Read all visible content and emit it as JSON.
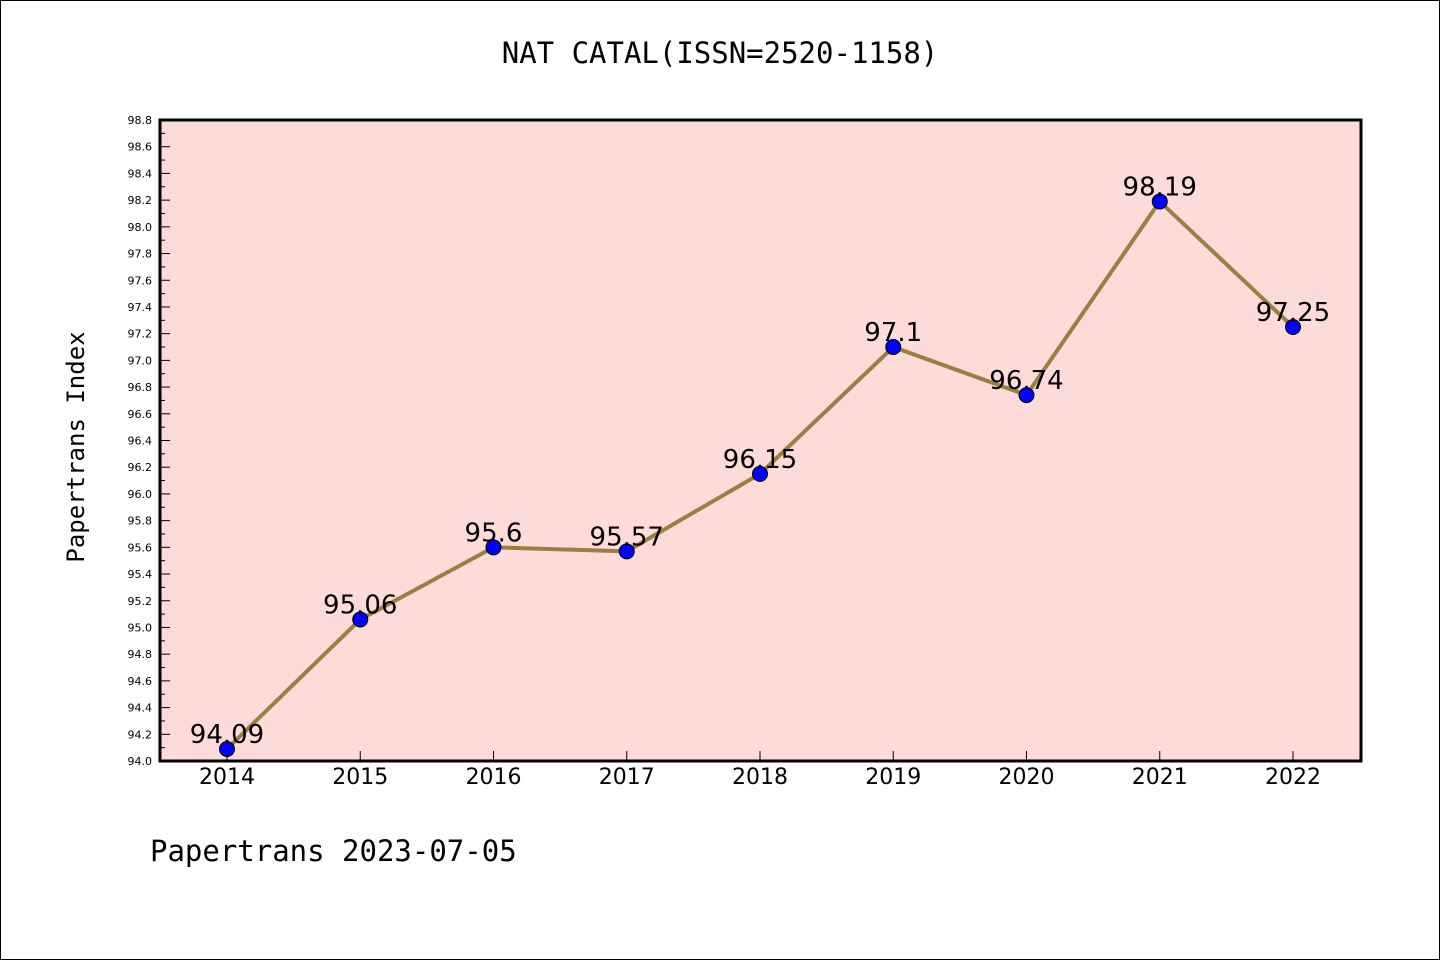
{
  "chart_data": {
    "type": "line",
    "title": "NAT CATAL(ISSN=2520-1158)",
    "xlabel": "",
    "ylabel": "Papertrans Index",
    "categories": [
      "2014",
      "2015",
      "2016",
      "2017",
      "2018",
      "2019",
      "2020",
      "2021",
      "2022"
    ],
    "series": [
      {
        "values": [
          94.09,
          95.06,
          95.6,
          95.57,
          96.15,
          97.1,
          96.74,
          98.19,
          97.25
        ],
        "labels": [
          "94.09",
          "95.06",
          "95.6",
          "95.57",
          "96.15",
          "97.1",
          "96.74",
          "98.19",
          "97.25"
        ],
        "line_color": "#9a8040",
        "marker_color": "#0000ff"
      }
    ],
    "ylim": [
      94.0,
      98.8
    ],
    "yticks": [
      "94.0",
      "94.2",
      "94.4",
      "94.6",
      "94.8",
      "95.0",
      "95.2",
      "95.4",
      "95.6",
      "95.8",
      "96.0",
      "96.2",
      "96.4",
      "96.6",
      "96.8",
      "97.0",
      "97.2",
      "97.4",
      "97.6",
      "97.8",
      "98.0",
      "98.2",
      "98.4",
      "98.6",
      "98.8"
    ],
    "plot_background": "#fddbd8",
    "grid": false,
    "legend": "none"
  },
  "footer": "Papertrans 2023-07-05"
}
